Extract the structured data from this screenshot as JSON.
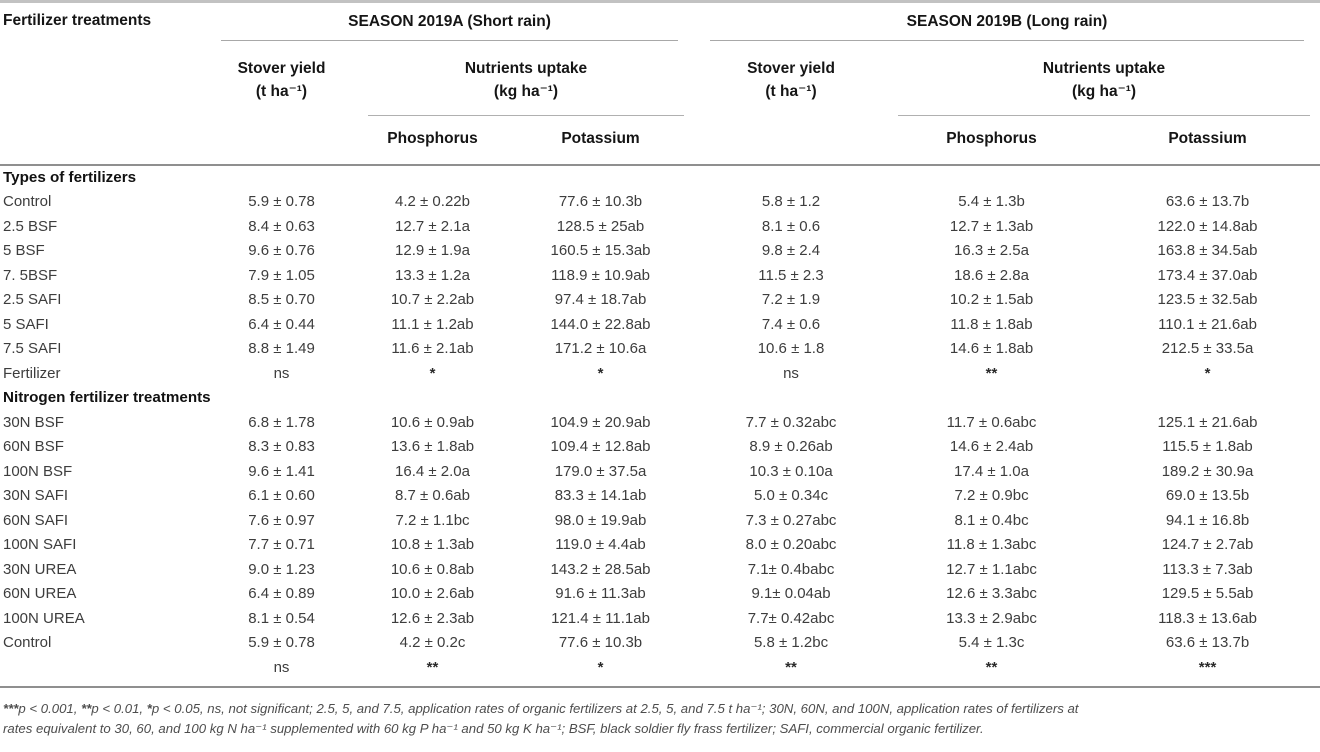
{
  "header": {
    "row_label": "Fertilizer treatments",
    "season_a_title": "SEASON 2019A (Short rain)",
    "season_b_title": "SEASON 2019B (Long rain)",
    "stover_line1": "Stover yield",
    "stover_line2": "(t ha⁻¹)",
    "nutrients_line1": "Nutrients uptake",
    "nutrients_line2": "(kg ha⁻¹)",
    "phosphorus": "Phosphorus",
    "potassium": "Potassium"
  },
  "table": {
    "rows": [
      {
        "type": "section",
        "label": "Types of fertilizers"
      },
      {
        "type": "data",
        "label": "Control",
        "values": [
          "5.9 ± 0.78",
          "4.2 ± 0.22b",
          "77.6 ± 10.3b",
          "5.8 ± 1.2",
          "5.4 ± 1.3b",
          "63.6 ± 13.7b"
        ]
      },
      {
        "type": "data",
        "label": "2.5 BSF",
        "values": [
          "8.4 ± 0.63",
          "12.7 ± 2.1a",
          "128.5 ± 25ab",
          "8.1 ± 0.6",
          "12.7 ± 1.3ab",
          "122.0 ± 14.8ab"
        ]
      },
      {
        "type": "data",
        "label": "5 BSF",
        "values": [
          "9.6 ± 0.76",
          "12.9 ± 1.9a",
          "160.5 ± 15.3ab",
          "9.8 ± 2.4",
          "16.3 ± 2.5a",
          "163.8 ± 34.5ab"
        ]
      },
      {
        "type": "data",
        "label": "7. 5BSF",
        "values": [
          "7.9 ± 1.05",
          "13.3 ± 1.2a",
          "118.9 ± 10.9ab",
          "11.5 ± 2.3",
          "18.6 ± 2.8a",
          "173.4 ± 37.0ab"
        ]
      },
      {
        "type": "data",
        "label": "2.5 SAFI",
        "values": [
          "8.5 ± 0.70",
          "10.7 ± 2.2ab",
          "97.4 ± 18.7ab",
          "7.2 ± 1.9",
          "10.2 ± 1.5ab",
          "123.5 ± 32.5ab"
        ]
      },
      {
        "type": "data",
        "label": "5 SAFI",
        "values": [
          "6.4 ± 0.44",
          "11.1 ± 1.2ab",
          "144.0 ± 22.8ab",
          "7.4 ± 0.6",
          "11.8 ± 1.8ab",
          "110.1 ± 21.6ab"
        ]
      },
      {
        "type": "data",
        "label": "7.5 SAFI",
        "values": [
          "8.8 ± 1.49",
          "11.6 ± 2.1ab",
          "171.2 ± 10.6a",
          "10.6 ± 1.8",
          "14.6 ± 1.8ab",
          "212.5 ± 33.5a"
        ]
      },
      {
        "type": "sig",
        "label": "Fertilizer",
        "values": [
          "ns",
          "*",
          "*",
          "ns",
          "**",
          "*"
        ]
      },
      {
        "type": "section",
        "label": "Nitrogen fertilizer treatments"
      },
      {
        "type": "data",
        "label": "30N BSF",
        "values": [
          "6.8 ± 1.78",
          "10.6 ± 0.9ab",
          "104.9 ± 20.9ab",
          "7.7 ± 0.32abc",
          "11.7 ± 0.6abc",
          "125.1 ± 21.6ab"
        ]
      },
      {
        "type": "data",
        "label": "60N BSF",
        "values": [
          "8.3 ± 0.83",
          "13.6 ± 1.8ab",
          "109.4 ± 12.8ab",
          "8.9 ± 0.26ab",
          "14.6 ± 2.4ab",
          "115.5 ± 1.8ab"
        ]
      },
      {
        "type": "data",
        "label": "100N BSF",
        "values": [
          "9.6 ± 1.41",
          "16.4 ± 2.0a",
          "179.0 ± 37.5a",
          "10.3 ± 0.10a",
          "17.4 ± 1.0a",
          "189.2 ± 30.9a"
        ]
      },
      {
        "type": "data",
        "label": "30N SAFI",
        "values": [
          "6.1 ± 0.60",
          "8.7 ± 0.6ab",
          "83.3 ± 14.1ab",
          "5.0 ± 0.34c",
          "7.2 ± 0.9bc",
          "69.0 ± 13.5b"
        ]
      },
      {
        "type": "data",
        "label": "60N SAFI",
        "values": [
          "7.6 ± 0.97",
          "7.2 ± 1.1bc",
          "98.0 ± 19.9ab",
          "7.3 ± 0.27abc",
          "8.1 ± 0.4bc",
          "94.1 ± 16.8b"
        ]
      },
      {
        "type": "data",
        "label": "100N SAFI",
        "values": [
          "7.7 ± 0.71",
          "10.8 ± 1.3ab",
          "119.0 ± 4.4ab",
          "8.0 ± 0.20abc",
          "11.8 ± 1.3abc",
          "124.7 ± 2.7ab"
        ]
      },
      {
        "type": "data",
        "label": "30N UREA",
        "values": [
          "9.0 ± 1.23",
          "10.6 ± 0.8ab",
          "143.2 ± 28.5ab",
          "7.1± 0.4babc",
          "12.7 ± 1.1abc",
          "113.3 ± 7.3ab"
        ]
      },
      {
        "type": "data",
        "label": "60N UREA",
        "values": [
          "6.4 ± 0.89",
          "10.0 ± 2.6ab",
          "91.6 ± 11.3ab",
          "9.1± 0.04ab",
          "12.6 ± 3.3abc",
          "129.5 ± 5.5ab"
        ]
      },
      {
        "type": "data",
        "label": "100N UREA",
        "values": [
          "8.1 ± 0.54",
          "12.6 ± 2.3ab",
          "121.4 ± 11.1ab",
          "7.7± 0.42abc",
          "13.3 ± 2.9abc",
          "118.3 ± 13.6ab"
        ]
      },
      {
        "type": "data",
        "label": "Control",
        "values": [
          "5.9 ± 0.78",
          "4.2 ± 0.2c",
          "77.6 ± 10.3b",
          "5.8 ± 1.2bc",
          "5.4 ± 1.3c",
          "63.6 ± 13.7b"
        ]
      },
      {
        "type": "sig",
        "label": "",
        "values": [
          "ns",
          "**",
          "*",
          "**",
          "**",
          "***"
        ]
      }
    ]
  },
  "footnote": {
    "lines": [
      [
        {
          "t": "***",
          "b": 1
        },
        {
          "t": "p < 0.001, "
        },
        {
          "t": "**",
          "b": 1
        },
        {
          "t": "p < 0.01, "
        },
        {
          "t": "*",
          "b": 1
        },
        {
          "t": "p < 0.05, ns, not significant; 2.5, 5, and 7.5, application rates of organic fertilizers at 2.5, 5, and 7.5 t ha⁻¹; 30N, 60N, and 100N, application rates of fertilizers at"
        }
      ],
      [
        {
          "t": "rates equivalent to 30, 60, and 100 kg N ha⁻¹ supplemented with 60 kg P ha⁻¹ and 50 kg K ha⁻¹; BSF, black soldier fly frass fertilizer; SAFI, commercial organic fertilizer."
        }
      ]
    ]
  },
  "colors": {
    "rule_dark": "#8f8f8f",
    "rule_light": "#b0b0b0",
    "text_header": "#151515",
    "text_data": "#3d3d3d",
    "text_footnote": "#4d4d4d"
  }
}
